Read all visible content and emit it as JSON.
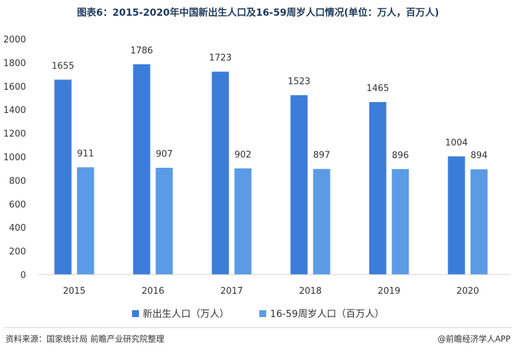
{
  "chart_data": {
    "type": "bar",
    "title": "图表6：2015-2020年中国新出生人口及16-59周岁人口情况(单位：万人，百万人)",
    "categories": [
      "2015",
      "2016",
      "2017",
      "2018",
      "2019",
      "2020"
    ],
    "series": [
      {
        "name": "新出生人口（万人）",
        "values": [
          1655,
          1786,
          1723,
          1523,
          1465,
          1004
        ],
        "color": "#3b7dd8"
      },
      {
        "name": "16-59周岁人口（百万人）",
        "values": [
          911,
          907,
          902,
          897,
          896,
          894
        ],
        "color": "#5b9be6"
      }
    ],
    "y_ticks": [
      "0",
      "200",
      "400",
      "600",
      "800",
      "1000",
      "1200",
      "1400",
      "1600",
      "1800",
      "2000"
    ],
    "ylim": [
      0,
      2000
    ],
    "grid": false,
    "legend_position": "bottom"
  },
  "footer": {
    "source": "资料来源：国家统计局 前瞻产业研究院整理",
    "credit": "@前瞻经济学人APP"
  }
}
